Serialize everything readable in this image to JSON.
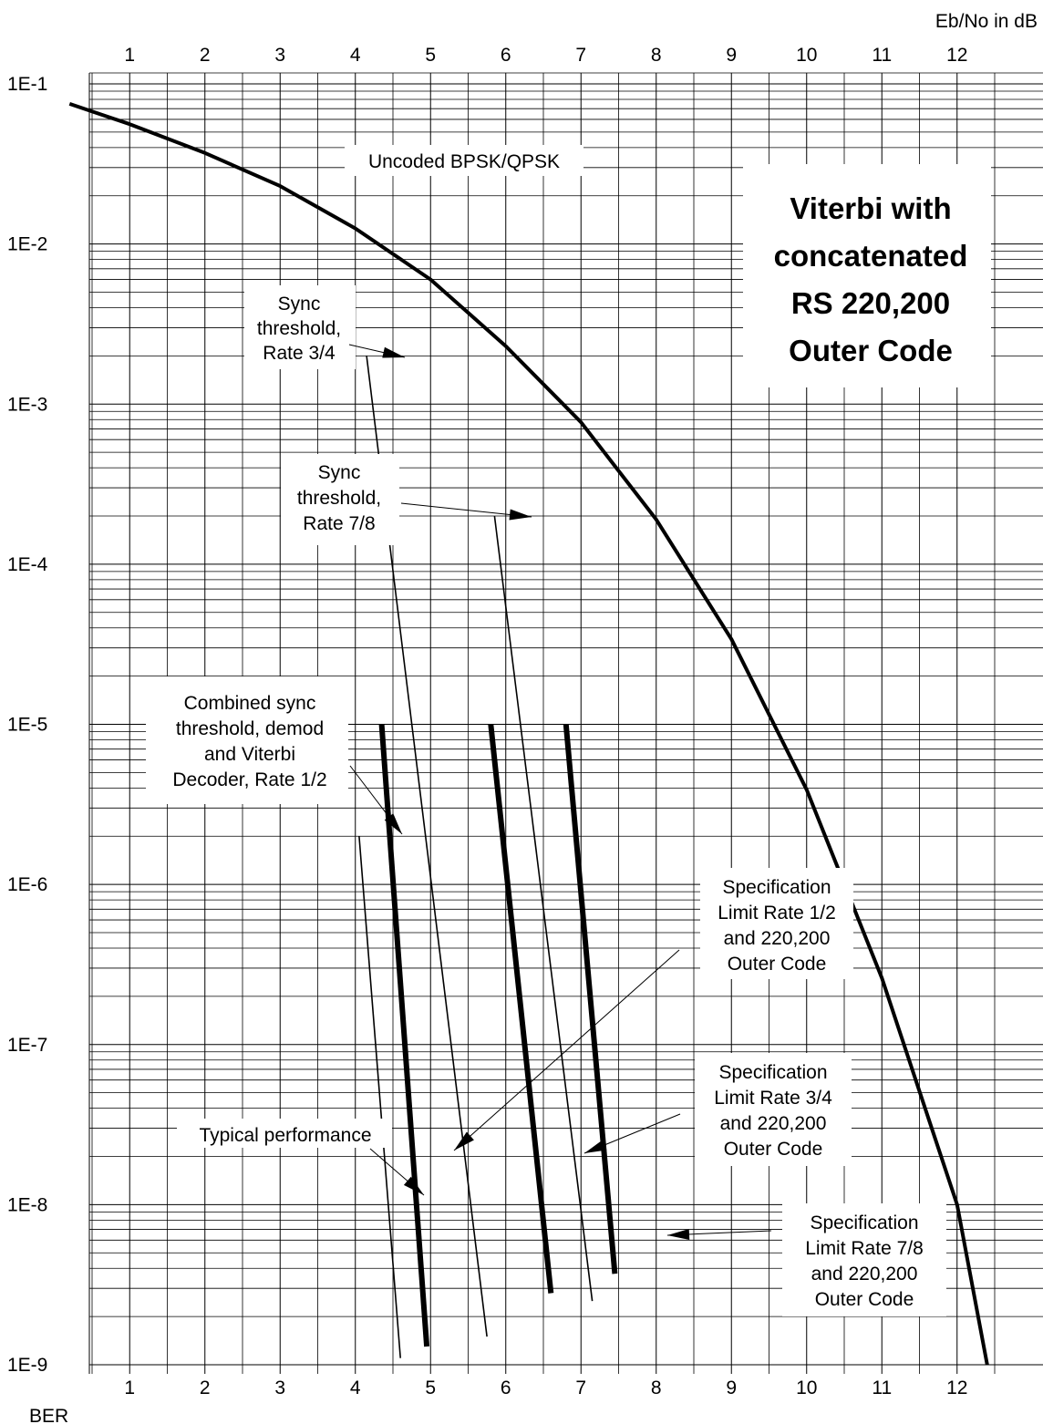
{
  "chart_data": {
    "type": "line",
    "xlabel": "Eb/No in dB",
    "ylabel": "BER",
    "x_ticks": [
      "1",
      "2",
      "3",
      "4",
      "5",
      "6",
      "7",
      "8",
      "9",
      "10",
      "11",
      "12"
    ],
    "y_ticks": [
      "1E-1",
      "1E-2",
      "1E-3",
      "1E-4",
      "1E-5",
      "1E-6",
      "1E-7",
      "1E-8",
      "1E-9"
    ],
    "xlim": [
      0,
      12.4
    ],
    "ylim": [
      1e-09,
      0.1
    ],
    "yscale": "log",
    "grid": true,
    "title_box": [
      "Viterbi with",
      "concatenated",
      "RS 220,200",
      "Outer Code"
    ],
    "series": [
      {
        "name": "Uncoded BPSK/QPSK",
        "style": "bold",
        "x": [
          0.2,
          1.0,
          2.0,
          3.0,
          4.0,
          5.0,
          6.0,
          7.0,
          8.0,
          9.0,
          10.0,
          11.0,
          12.0,
          12.4
        ],
        "y": [
          0.075,
          0.056,
          0.037,
          0.023,
          0.0125,
          0.006,
          0.0023,
          0.00077,
          0.00019,
          3.4e-05,
          3.9e-06,
          2.6e-07,
          1e-08,
          1e-09
        ]
      },
      {
        "name": "Sync threshold, Rate 3/4",
        "style": "thin",
        "x": [
          4.15,
          5.75
        ],
        "y": [
          0.002,
          1.5e-09
        ]
      },
      {
        "name": "Sync threshold, Rate 7/8",
        "style": "thin",
        "x": [
          5.85,
          7.15
        ],
        "y": [
          0.0002,
          2.5e-09
        ]
      },
      {
        "name": "Combined sync threshold, demod and Viterbi Decoder, Rate 1/2",
        "style": "thin",
        "x": [
          4.05,
          4.6
        ],
        "y": [
          2e-06,
          1.1e-09
        ]
      },
      {
        "name": "Specification Limit Rate 1/2 and 220,200 Outer Code",
        "style": "bold",
        "x": [
          4.35,
          4.95
        ],
        "y": [
          1e-05,
          1.3e-09
        ]
      },
      {
        "name": "Specification Limit Rate 3/4 and 220,200 Outer Code",
        "style": "bold",
        "x": [
          5.8,
          6.6
        ],
        "y": [
          1e-05,
          2.8e-09
        ]
      },
      {
        "name": "Specification Limit Rate 7/8 and 220,200 Outer Code",
        "style": "bold",
        "x": [
          6.8,
          7.45
        ],
        "y": [
          1e-05,
          3.7e-09
        ]
      }
    ],
    "annotations": [
      {
        "id": "uncoded",
        "lines": [
          "Uncoded BPSK/QPSK"
        ]
      },
      {
        "id": "sync34",
        "lines": [
          "Sync",
          "threshold,",
          "Rate 3/4"
        ]
      },
      {
        "id": "sync78",
        "lines": [
          "Sync",
          "threshold,",
          "Rate 7/8"
        ]
      },
      {
        "id": "combined",
        "lines": [
          "Combined sync",
          "threshold, demod",
          "and Viterbi",
          "Decoder, Rate 1/2"
        ]
      },
      {
        "id": "spec12",
        "lines": [
          "Specification",
          "Limit Rate 1/2",
          "and 220,200",
          "Outer Code"
        ]
      },
      {
        "id": "spec34",
        "lines": [
          "Specification",
          "Limit  Rate 3/4",
          "and 220,200",
          "Outer Code"
        ]
      },
      {
        "id": "typical",
        "lines": [
          "Typical performance"
        ]
      },
      {
        "id": "spec78",
        "lines": [
          "Specification",
          "Limit Rate 7/8",
          "and 220,200",
          "Outer Code"
        ]
      }
    ]
  }
}
